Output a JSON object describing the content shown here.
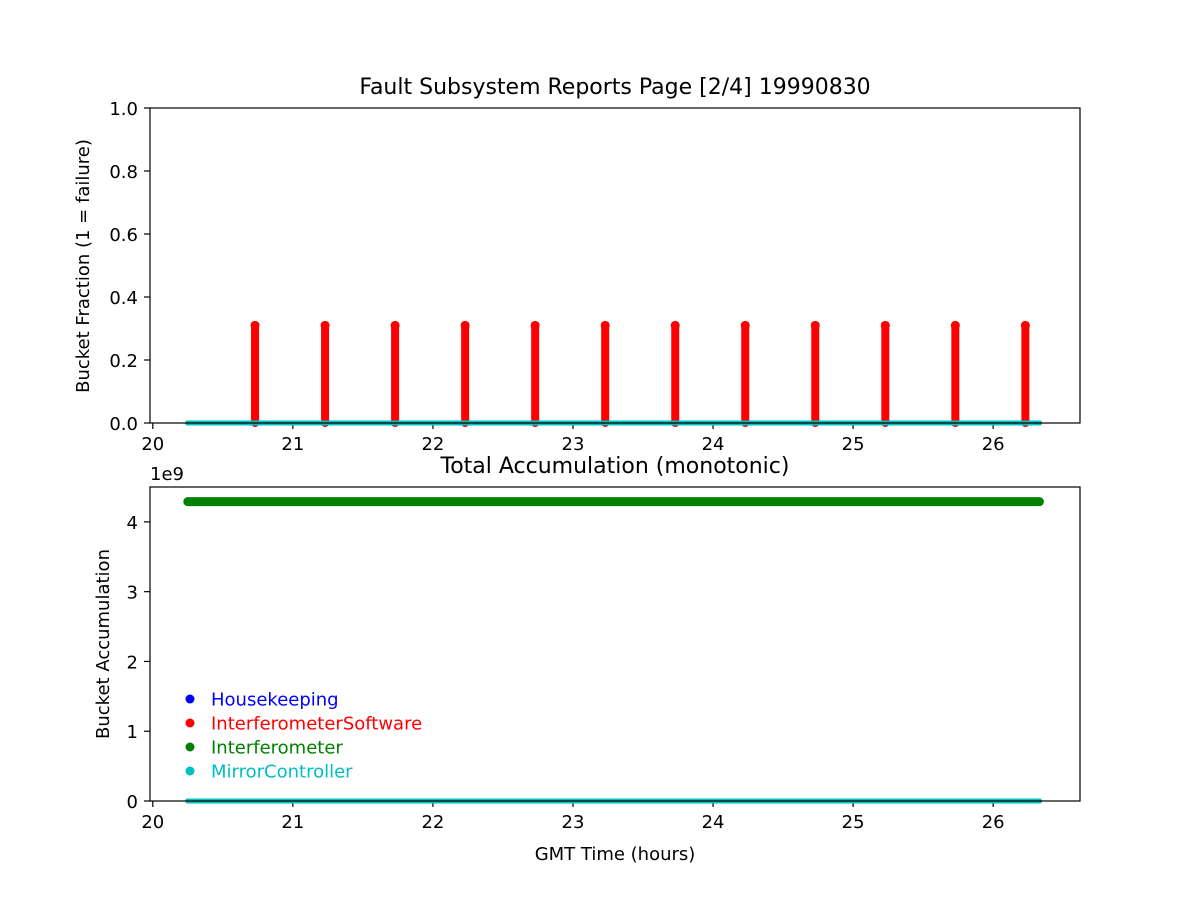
{
  "chart_data": [
    {
      "type": "scatter",
      "title": "Fault Subsystem Reports Page [2/4] 19990830",
      "xlabel": "",
      "ylabel": "Bucket Fraction (1 = failure)",
      "xlim": [
        19.98,
        26.62
      ],
      "ylim": [
        0.0,
        1.0
      ],
      "x_ticks": [
        20,
        21,
        22,
        23,
        24,
        25,
        26
      ],
      "x_tick_labels": [
        "20",
        "21",
        "22",
        "23",
        "24",
        "25",
        "26"
      ],
      "y_ticks": [
        0.0,
        0.2,
        0.4,
        0.6,
        0.8,
        1.0
      ],
      "y_tick_labels": [
        "0.0",
        "0.2",
        "0.4",
        "0.6",
        "0.8",
        "1.0"
      ],
      "x_range": [
        20.25,
        26.33
      ],
      "series": [
        {
          "name": "Housekeeping",
          "color": "#0000ff",
          "baseline": 0.0
        },
        {
          "name": "InterferometerSoftware",
          "color": "#ff0000",
          "baseline": 0.0,
          "spike_x": [
            20.73,
            21.23,
            21.73,
            22.23,
            22.73,
            23.23,
            23.73,
            24.23,
            24.73,
            25.23,
            25.73,
            26.23
          ],
          "spike_peak": 0.31
        },
        {
          "name": "Interferometer",
          "color": "#008000",
          "baseline": 0.0
        },
        {
          "name": "MirrorController",
          "color": "#00bfbf",
          "baseline": 0.0
        }
      ]
    },
    {
      "type": "scatter",
      "title": "Total Accumulation (monotonic)",
      "xlabel": "GMT Time (hours)",
      "ylabel": "Bucket Accumulation",
      "y_offset_label": "1e9",
      "xlim": [
        19.98,
        26.62
      ],
      "ylim": [
        0.0,
        4.5
      ],
      "x_ticks": [
        20,
        21,
        22,
        23,
        24,
        25,
        26
      ],
      "x_tick_labels": [
        "20",
        "21",
        "22",
        "23",
        "24",
        "25",
        "26"
      ],
      "y_ticks": [
        0,
        1,
        2,
        3,
        4
      ],
      "y_tick_labels": [
        "0",
        "1",
        "2",
        "3",
        "4"
      ],
      "x_range": [
        20.25,
        26.33
      ],
      "series": [
        {
          "name": "Housekeeping",
          "color": "#0000ff",
          "value": 0.0
        },
        {
          "name": "InterferometerSoftware",
          "color": "#ff0000",
          "value": 0.0
        },
        {
          "name": "Interferometer",
          "color": "#008000",
          "value": 4.29
        },
        {
          "name": "MirrorController",
          "color": "#00bfbf",
          "value": 0.0
        }
      ],
      "legend": {
        "placement": "lower-left",
        "entries": [
          {
            "label": "Housekeeping",
            "color": "#0000ff"
          },
          {
            "label": "InterferometerSoftware",
            "color": "#ff0000"
          },
          {
            "label": "Interferometer",
            "color": "#008000"
          },
          {
            "label": "MirrorController",
            "color": "#00bfbf"
          }
        ]
      }
    }
  ]
}
